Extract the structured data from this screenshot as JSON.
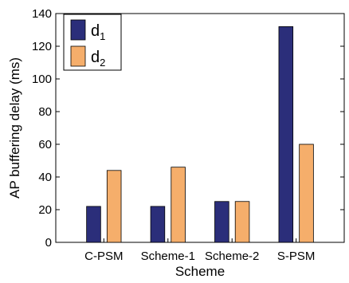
{
  "chart_data": {
    "type": "bar",
    "xlabel": "Scheme",
    "ylabel": "AP buffering delay (ms)",
    "categories": [
      "C-PSM",
      "Scheme-1",
      "Scheme-2",
      "S-PSM"
    ],
    "series": [
      {
        "name": "d",
        "subscript": "1",
        "color": "#2b2e7a",
        "values": [
          22,
          22,
          25,
          132
        ]
      },
      {
        "name": "d",
        "subscript": "2",
        "color": "#f5ae6b",
        "values": [
          44,
          46,
          25,
          60
        ]
      }
    ],
    "ylim": [
      0,
      140
    ],
    "yticks": [
      0,
      20,
      40,
      60,
      80,
      100,
      120,
      140
    ],
    "grid": false,
    "legend": "top-left"
  }
}
